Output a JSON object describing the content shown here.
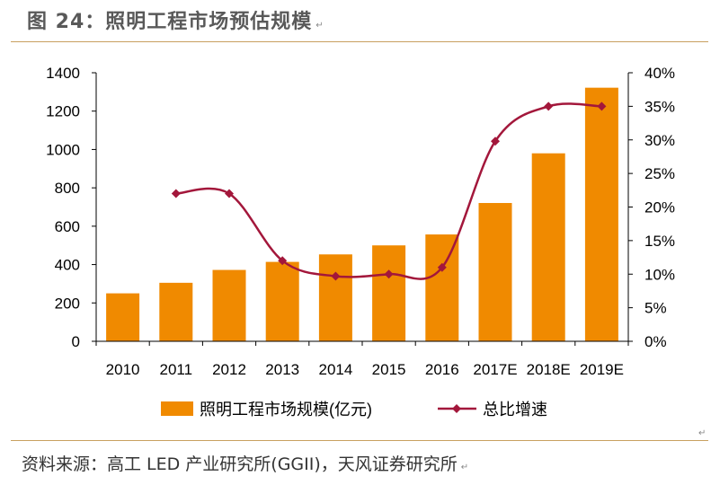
{
  "figure": {
    "title": "图 24：照明工程市场预估规模",
    "paragraph_mark": "↵",
    "source": "资料来源：高工 LED 产业研究所(GGII)，天风证券研究所"
  },
  "chart_data": {
    "type": "bar",
    "categories": [
      "2010",
      "2011",
      "2012",
      "2013",
      "2014",
      "2015",
      "2016",
      "2017E",
      "2018E",
      "2019E"
    ],
    "series": [
      {
        "name": "照明工程市场规模(亿元)",
        "type": "bar",
        "axis": "left",
        "color": "#f08a00",
        "values": [
          250,
          305,
          372,
          414,
          453,
          500,
          557,
          721,
          980,
          1322
        ]
      },
      {
        "name": "总比增速",
        "type": "line",
        "axis": "right",
        "color": "#a3173b",
        "values": [
          null,
          0.22,
          0.22,
          0.12,
          0.097,
          0.1,
          0.11,
          0.298,
          0.35,
          0.35
        ]
      }
    ],
    "y_left": {
      "min": 0,
      "max": 1400,
      "ticks": [
        0,
        200,
        400,
        600,
        800,
        1000,
        1200,
        1400
      ]
    },
    "y_right": {
      "min": 0,
      "max": 0.4,
      "ticks": [
        "0%",
        "5%",
        "10%",
        "15%",
        "20%",
        "25%",
        "30%",
        "35%",
        "40%"
      ]
    },
    "legend_position": "bottom",
    "grid": false
  }
}
